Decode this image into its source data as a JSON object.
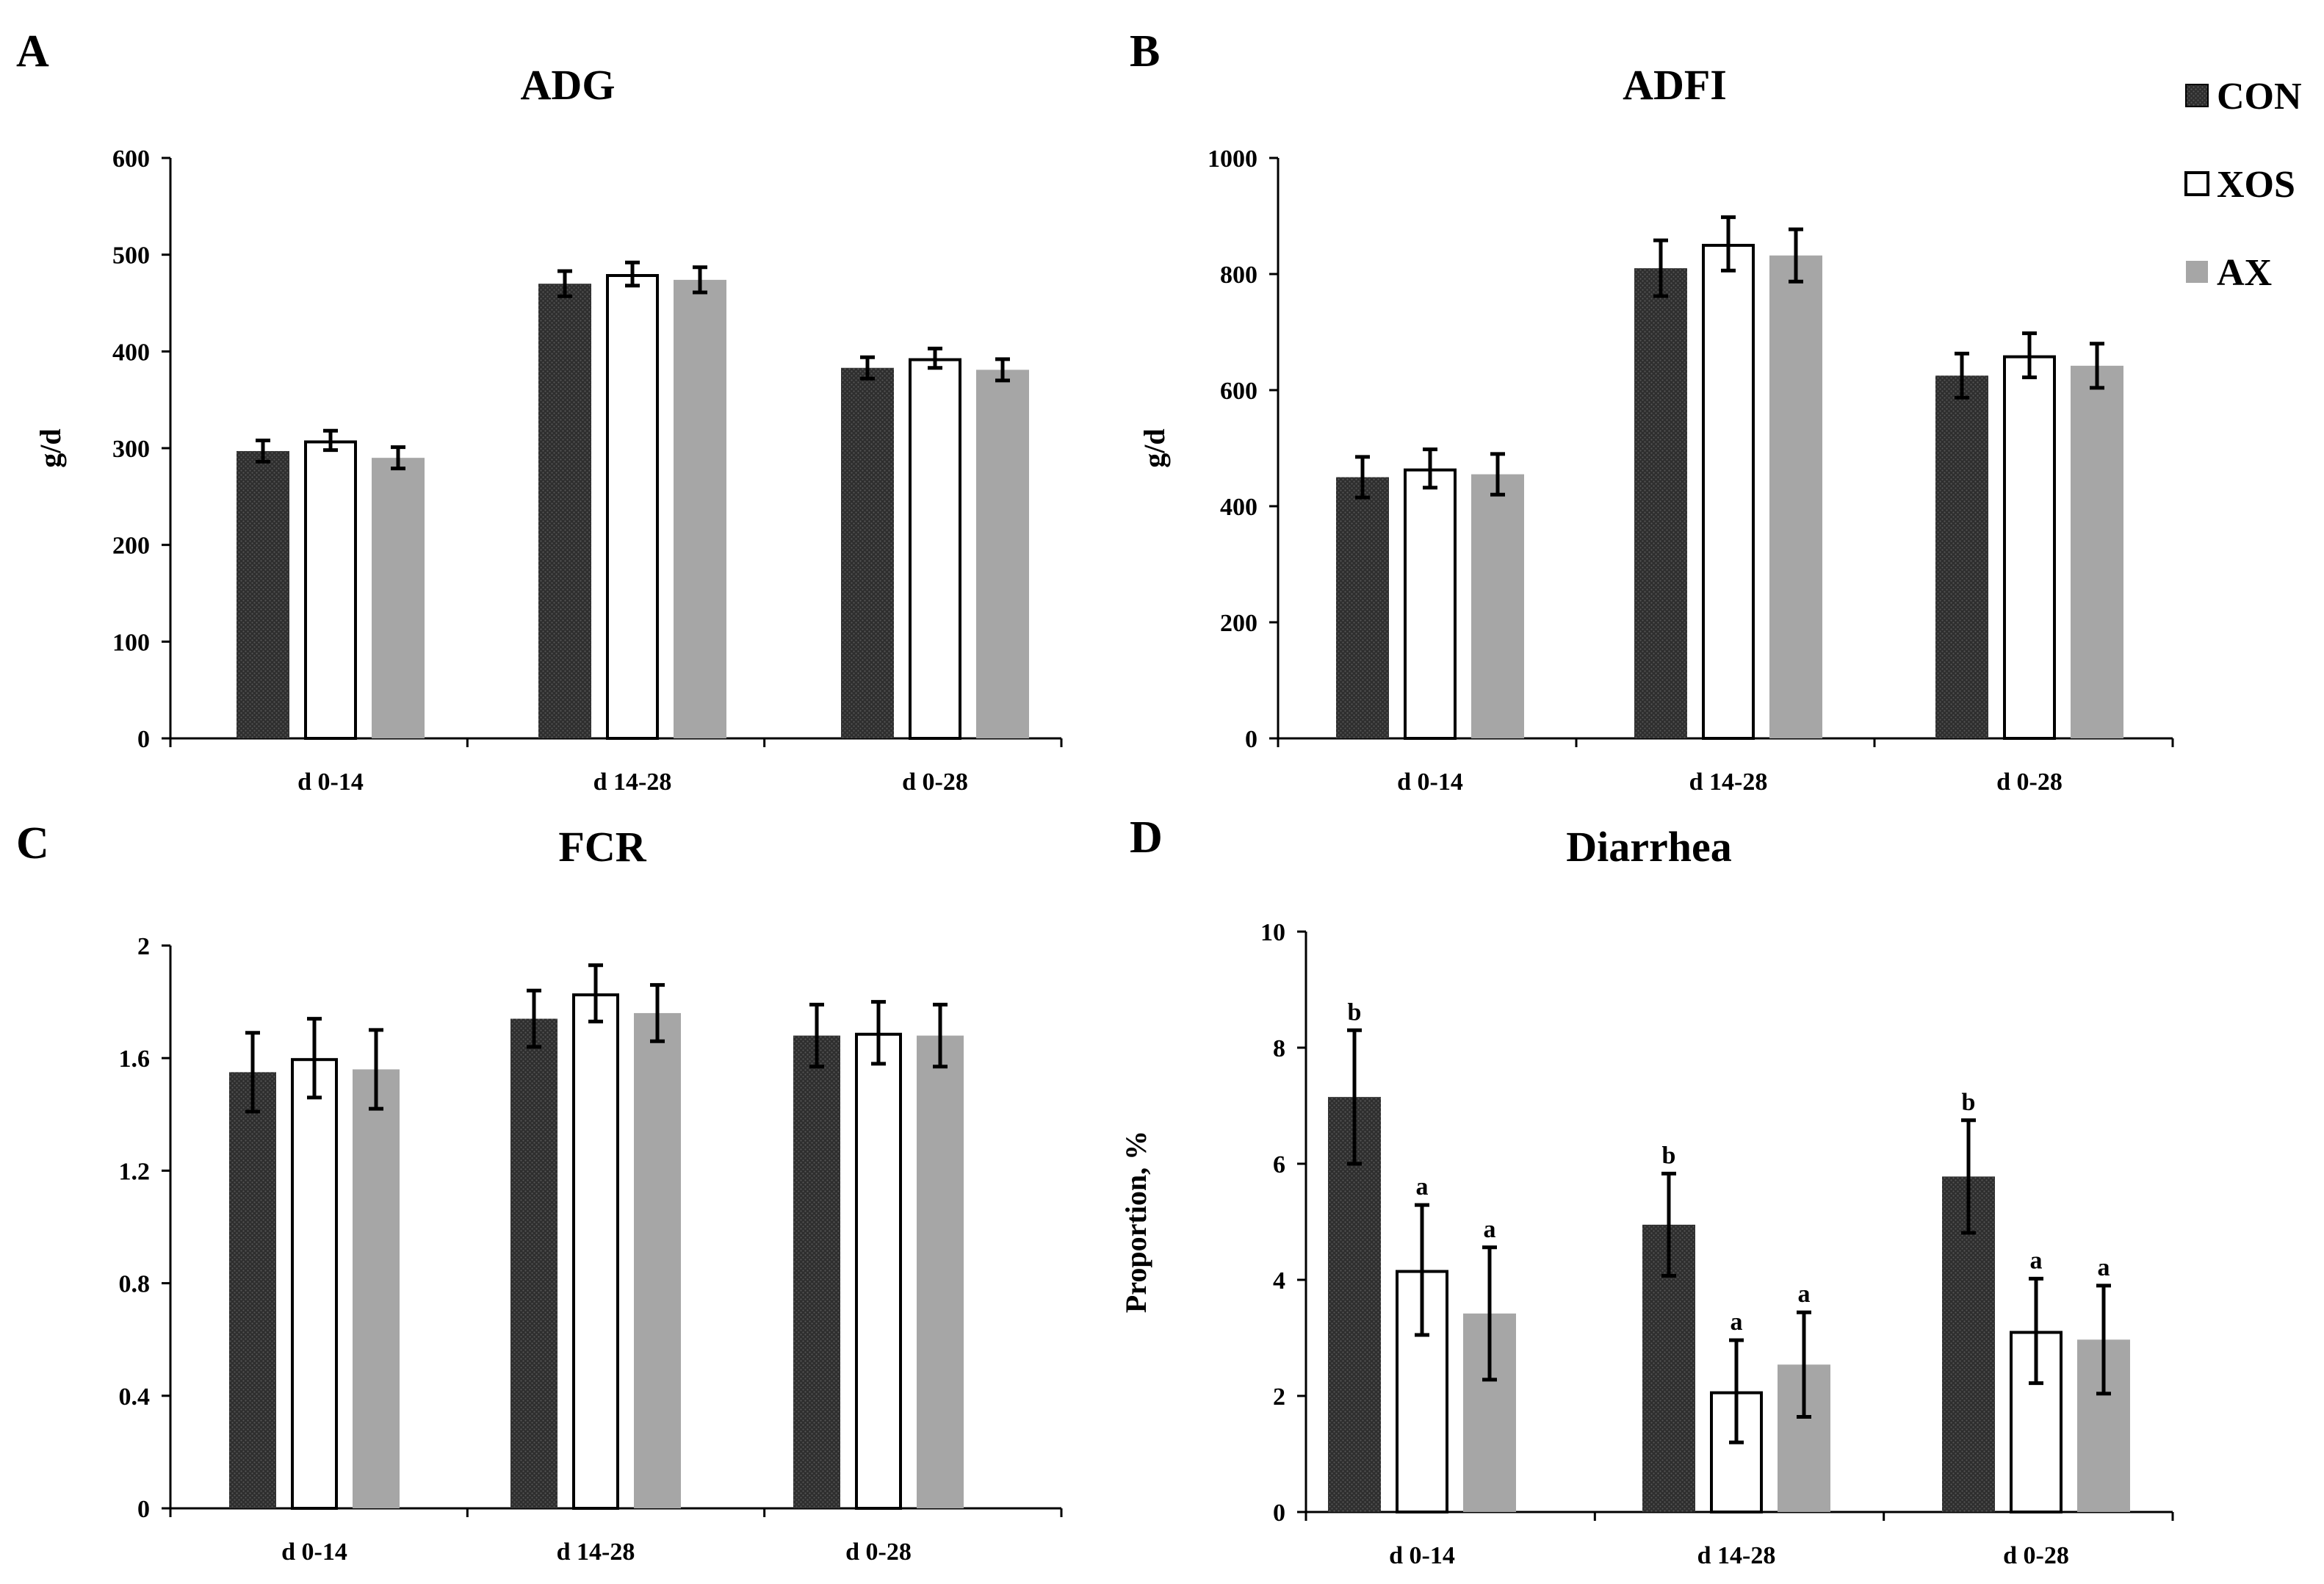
{
  "legend": {
    "items": [
      {
        "name": "CON",
        "color": "#2b2b2b",
        "pattern": "dots"
      },
      {
        "name": "XOS",
        "color": "#ffffff",
        "pattern": "outline"
      },
      {
        "name": "AX",
        "color": "#a6a6a6",
        "pattern": "solid"
      }
    ]
  },
  "chart_data": [
    {
      "panel": "A",
      "type": "bar",
      "title": "ADG",
      "xlabel": "",
      "ylabel": "g/d",
      "ylim": [
        0,
        600
      ],
      "yticks": [
        "0",
        "100",
        "200",
        "300",
        "400",
        "500",
        "600"
      ],
      "ytick_values": [
        0,
        100,
        200,
        300,
        400,
        500,
        600
      ],
      "categories": [
        "d 0-14",
        "d 14-28",
        "d 0-28"
      ],
      "series": [
        {
          "name": "CON",
          "values": [
            297,
            470,
            383
          ],
          "errors": [
            11,
            13,
            11
          ],
          "labels": [
            "",
            "",
            ""
          ]
        },
        {
          "name": "XOS",
          "values": [
            308,
            480,
            393
          ],
          "errors": [
            10,
            12,
            10
          ],
          "labels": [
            "",
            "",
            ""
          ]
        },
        {
          "name": "AX",
          "values": [
            290,
            474,
            381
          ],
          "errors": [
            11,
            13,
            11
          ],
          "labels": [
            "",
            "",
            ""
          ]
        }
      ]
    },
    {
      "panel": "B",
      "type": "bar",
      "title": "ADFI",
      "xlabel": "",
      "ylabel": "g/d",
      "ylim": [
        0,
        1000
      ],
      "yticks": [
        "0",
        "200",
        "400",
        "600",
        "800",
        "1000"
      ],
      "ytick_values": [
        0,
        200,
        400,
        600,
        800,
        1000
      ],
      "categories": [
        "d 0-14",
        "d 14-28",
        "d 0-28"
      ],
      "series": [
        {
          "name": "CON",
          "values": [
            450,
            810,
            625
          ],
          "errors": [
            35,
            48,
            38
          ],
          "labels": [
            "",
            "",
            ""
          ]
        },
        {
          "name": "XOS",
          "values": [
            465,
            852,
            660
          ],
          "errors": [
            33,
            46,
            38
          ],
          "labels": [
            "",
            "",
            ""
          ]
        },
        {
          "name": "AX",
          "values": [
            455,
            832,
            642
          ],
          "errors": [
            35,
            45,
            38
          ],
          "labels": [
            "",
            "",
            ""
          ]
        }
      ]
    },
    {
      "panel": "C",
      "type": "bar",
      "title": "FCR",
      "xlabel": "",
      "ylabel": "",
      "ylim": [
        0,
        2
      ],
      "yticks": [
        "0",
        "0.4",
        "0.8",
        "1.2",
        "1.6",
        "2"
      ],
      "ytick_values": [
        0,
        0.4,
        0.8,
        1.2,
        1.6,
        2
      ],
      "categories": [
        "d 0-14",
        "d 14-28",
        "d 0-28"
      ],
      "series": [
        {
          "name": "CON",
          "values": [
            1.55,
            1.74,
            1.68
          ],
          "errors": [
            0.14,
            0.1,
            0.11
          ],
          "labels": [
            "",
            "",
            ""
          ]
        },
        {
          "name": "XOS",
          "values": [
            1.6,
            1.83,
            1.69
          ],
          "errors": [
            0.14,
            0.1,
            0.11
          ],
          "labels": [
            "",
            "",
            ""
          ]
        },
        {
          "name": "AX",
          "values": [
            1.56,
            1.76,
            1.68
          ],
          "errors": [
            0.14,
            0.1,
            0.11
          ],
          "labels": [
            "",
            "",
            ""
          ]
        }
      ]
    },
    {
      "panel": "D",
      "type": "bar",
      "title": "Diarrhea",
      "xlabel": "",
      "ylabel": "Proportion, %",
      "ylim": [
        0,
        10
      ],
      "yticks": [
        "0",
        "2",
        "4",
        "6",
        "8",
        "10"
      ],
      "ytick_values": [
        0,
        2,
        4,
        6,
        8,
        10
      ],
      "categories": [
        "d 0-14",
        "d 14-28",
        "d 0-28"
      ],
      "series": [
        {
          "name": "CON",
          "values": [
            7.15,
            4.95,
            5.78
          ],
          "errors": [
            1.15,
            0.88,
            0.97
          ],
          "labels": [
            "b",
            "b",
            "b"
          ]
        },
        {
          "name": "XOS",
          "values": [
            4.17,
            2.08,
            3.12
          ],
          "errors": [
            1.12,
            0.88,
            0.9
          ],
          "labels": [
            "a",
            "a",
            "a"
          ]
        },
        {
          "name": "AX",
          "values": [
            3.42,
            2.54,
            2.97
          ],
          "errors": [
            1.14,
            0.9,
            0.93
          ],
          "labels": [
            "a",
            "a",
            "a"
          ]
        }
      ]
    }
  ]
}
